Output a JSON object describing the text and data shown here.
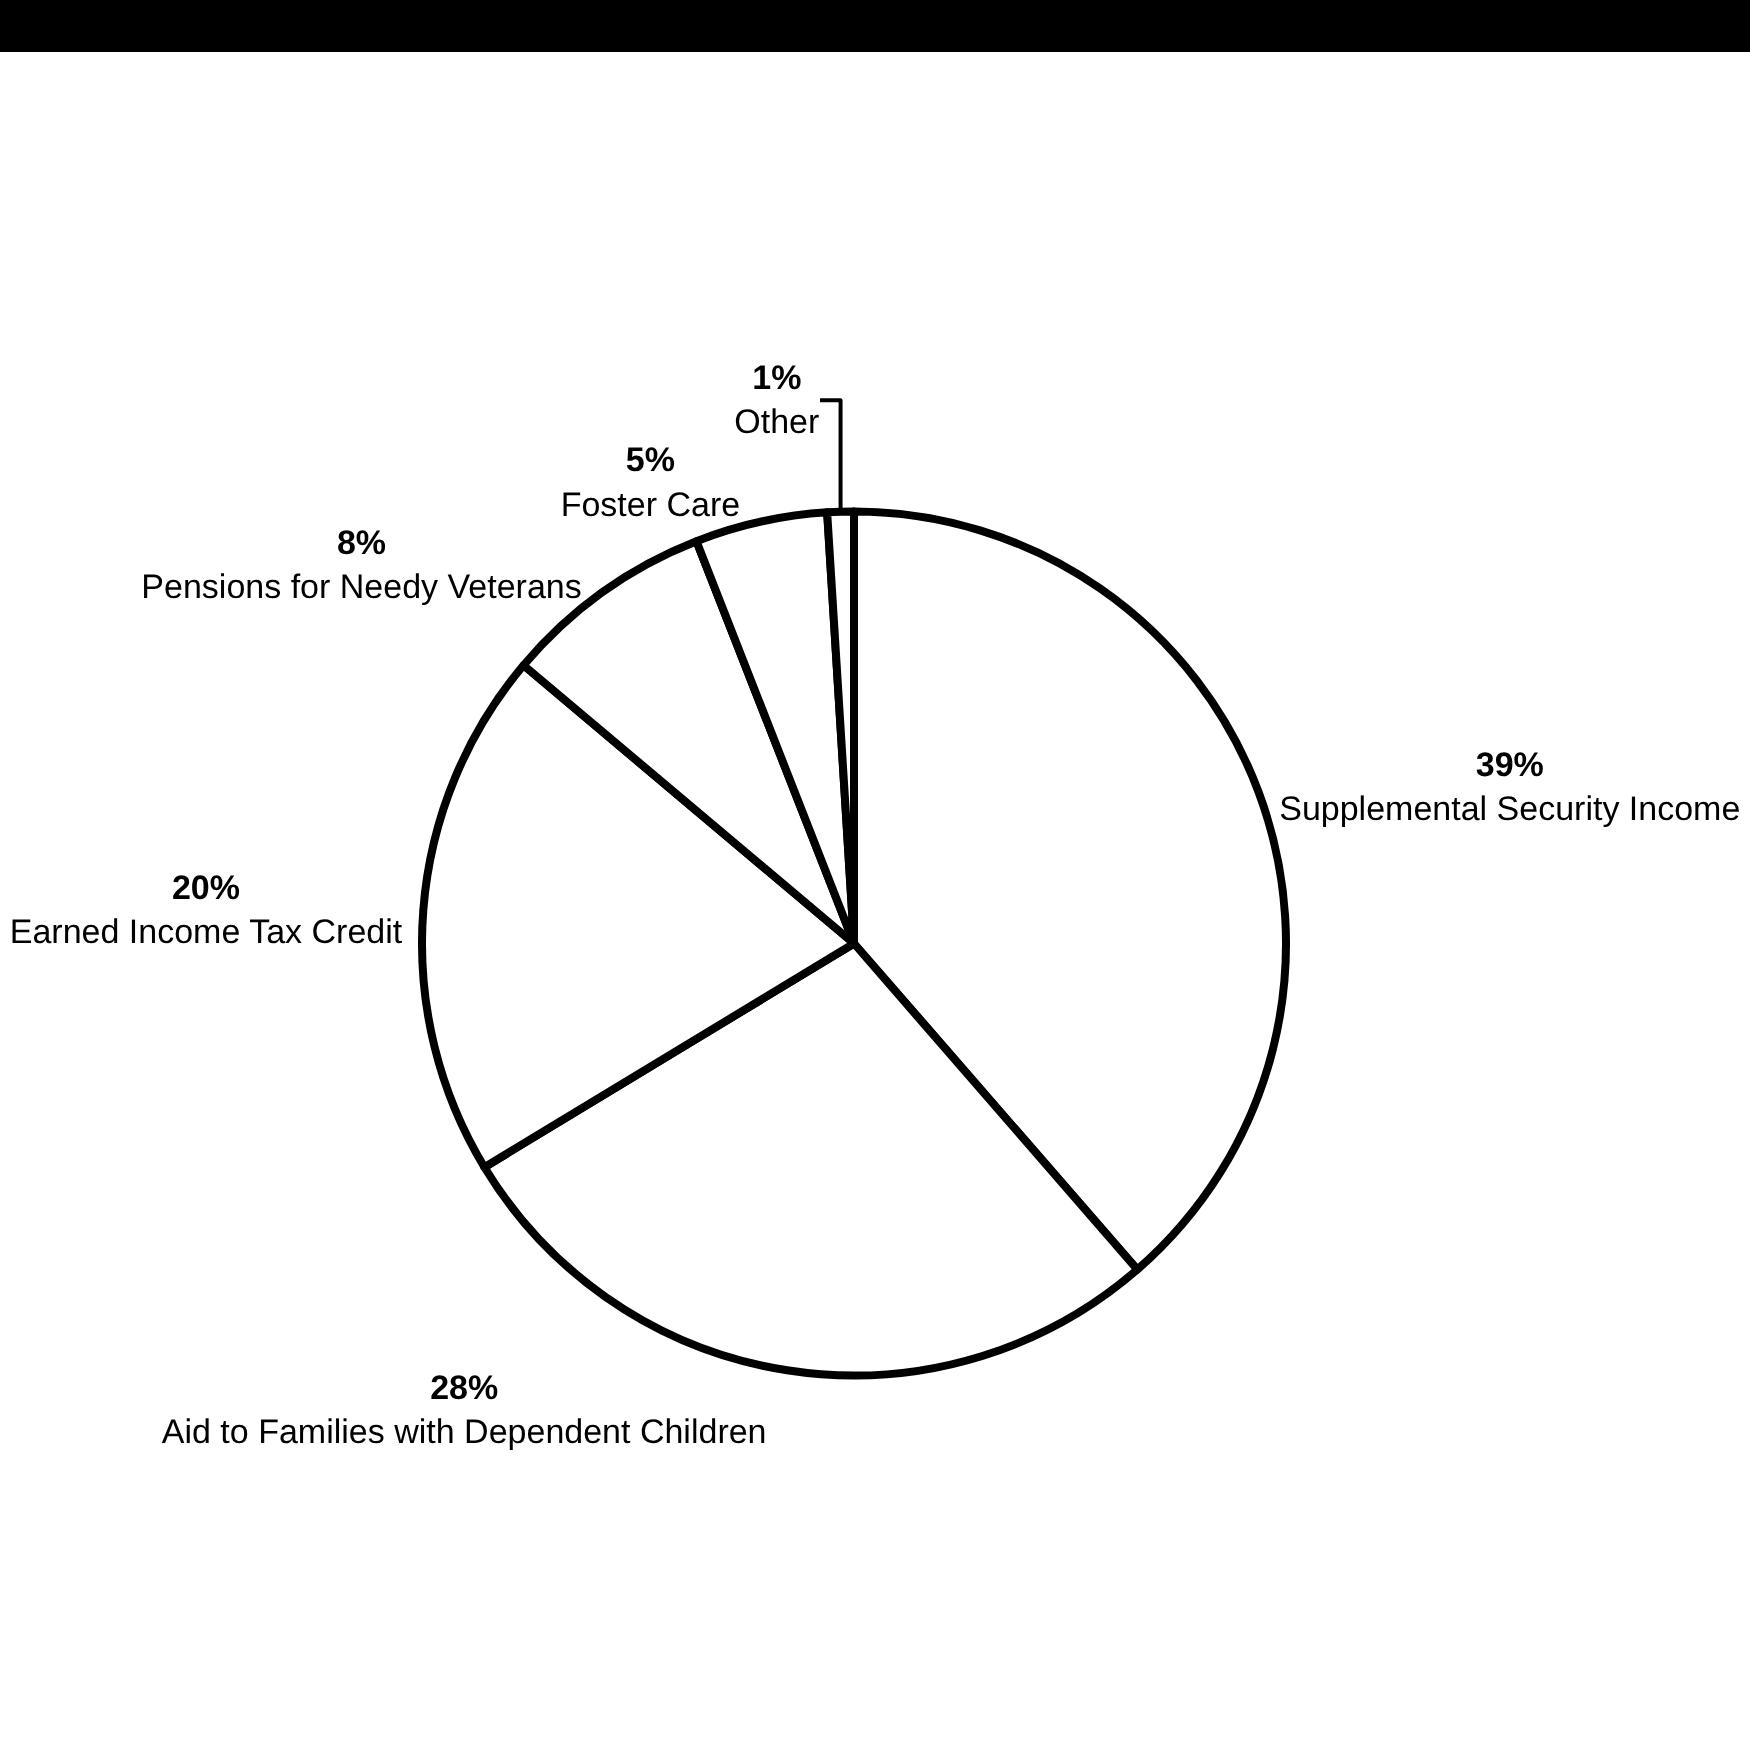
{
  "chart_data": {
    "type": "pie",
    "categories": [
      "Supplemental Security Income",
      "Aid to Families with Dependent Children",
      "Earned Income Tax Credit",
      "Pensions for Needy Veterans",
      "Foster Care",
      "Other"
    ],
    "values": [
      39,
      28,
      20,
      8,
      5,
      1
    ],
    "value_labels": [
      "39%",
      "28%",
      "20%",
      "8%",
      "5%",
      "1%"
    ],
    "colors": [
      "#ffffff",
      "#ffffff",
      "#ffffff",
      "#ffffff",
      "#ffffff",
      "#ffffff"
    ],
    "legend": false
  }
}
